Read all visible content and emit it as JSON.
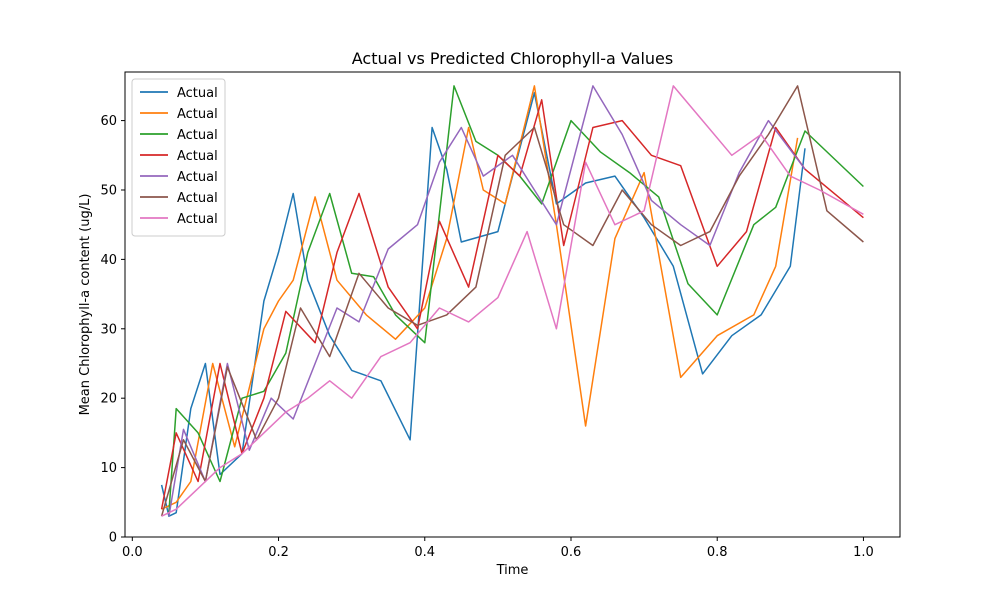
{
  "chart_data": {
    "type": "line",
    "title": "Actual vs Predicted Chlorophyll-a Values",
    "xlabel": "Time",
    "ylabel": "Mean Chlorophyll-a content (ug/L)",
    "xlim": [
      -0.01,
      1.05
    ],
    "ylim": [
      0,
      67
    ],
    "x_ticks": [
      0.0,
      0.2,
      0.4,
      0.6,
      0.8,
      1.0
    ],
    "x_tick_labels": [
      "0.0",
      "0.2",
      "0.4",
      "0.6",
      "0.8",
      "1.0"
    ],
    "y_ticks": [
      0,
      10,
      20,
      30,
      40,
      50,
      60
    ],
    "y_tick_labels": [
      "0",
      "10",
      "20",
      "30",
      "40",
      "50",
      "60"
    ],
    "grid": false,
    "legend_position": "top-left",
    "series": [
      {
        "name": "Actual",
        "color": "#1f77b4",
        "x": [
          0.04,
          0.05,
          0.06,
          0.08,
          0.1,
          0.12,
          0.15,
          0.18,
          0.2,
          0.22,
          0.24,
          0.27,
          0.3,
          0.34,
          0.38,
          0.41,
          0.43,
          0.45,
          0.5,
          0.53,
          0.55,
          0.58,
          0.62,
          0.66,
          0.7,
          0.74,
          0.78,
          0.82,
          0.86,
          0.9,
          0.92
        ],
        "y": [
          7.5,
          3.0,
          3.5,
          18.5,
          25.0,
          9.0,
          12.0,
          34.0,
          41.0,
          49.5,
          37.0,
          29.0,
          24.0,
          22.5,
          14.0,
          59.0,
          53.0,
          42.5,
          44.0,
          56.0,
          64.0,
          48.0,
          51.0,
          52.0,
          46.0,
          39.0,
          23.5,
          29.0,
          32.0,
          39.0,
          56.0
        ]
      },
      {
        "name": "Actual",
        "color": "#ff7f0e",
        "x": [
          0.04,
          0.06,
          0.08,
          0.11,
          0.14,
          0.18,
          0.2,
          0.22,
          0.25,
          0.28,
          0.32,
          0.36,
          0.4,
          0.43,
          0.46,
          0.48,
          0.51,
          0.55,
          0.58,
          0.62,
          0.66,
          0.7,
          0.75,
          0.8,
          0.85,
          0.88,
          0.91
        ],
        "y": [
          4.0,
          5.0,
          8.0,
          25.0,
          13.0,
          30.0,
          34.0,
          37.0,
          49.0,
          37.0,
          32.0,
          28.5,
          33.0,
          43.0,
          59.0,
          50.0,
          48.0,
          65.0,
          45.0,
          16.0,
          43.0,
          52.5,
          23.0,
          29.0,
          32.0,
          39.0,
          57.5
        ]
      },
      {
        "name": "Actual",
        "color": "#2ca02c",
        "x": [
          0.05,
          0.06,
          0.09,
          0.12,
          0.15,
          0.18,
          0.21,
          0.24,
          0.27,
          0.3,
          0.33,
          0.36,
          0.4,
          0.44,
          0.47,
          0.5,
          0.53,
          0.56,
          0.6,
          0.64,
          0.68,
          0.72,
          0.76,
          0.8,
          0.85,
          0.88,
          0.92,
          1.0
        ],
        "y": [
          3.5,
          18.5,
          15.0,
          8.0,
          20.0,
          21.0,
          26.5,
          41.0,
          49.5,
          38.0,
          37.5,
          32.0,
          28.0,
          65.0,
          57.0,
          55.0,
          52.0,
          48.0,
          60.0,
          55.5,
          52.5,
          49.0,
          36.5,
          32.0,
          45.0,
          47.5,
          58.5,
          50.5
        ]
      },
      {
        "name": "Actual",
        "color": "#d62728",
        "x": [
          0.04,
          0.06,
          0.09,
          0.12,
          0.15,
          0.18,
          0.21,
          0.25,
          0.28,
          0.31,
          0.35,
          0.39,
          0.42,
          0.46,
          0.5,
          0.53,
          0.56,
          0.59,
          0.63,
          0.67,
          0.71,
          0.75,
          0.8,
          0.84,
          0.88,
          0.92,
          1.0
        ],
        "y": [
          4.0,
          15.0,
          8.0,
          25.0,
          12.0,
          20.0,
          32.5,
          28.0,
          41.0,
          49.5,
          36.0,
          30.0,
          45.5,
          36.0,
          55.0,
          52.0,
          63.0,
          42.0,
          59.0,
          60.0,
          55.0,
          53.5,
          39.0,
          44.0,
          59.0,
          53.0,
          46.0
        ]
      },
      {
        "name": "Actual",
        "color": "#9467bd",
        "x": [
          0.05,
          0.07,
          0.1,
          0.13,
          0.16,
          0.19,
          0.22,
          0.25,
          0.28,
          0.31,
          0.35,
          0.39,
          0.42,
          0.45,
          0.48,
          0.52,
          0.55,
          0.58,
          0.63,
          0.67,
          0.71,
          0.75,
          0.79,
          0.83,
          0.87,
          0.92
        ],
        "y": [
          3.0,
          15.5,
          8.0,
          25.0,
          12.5,
          20.0,
          17.0,
          25.0,
          33.0,
          31.0,
          41.5,
          45.0,
          54.0,
          59.0,
          52.0,
          55.0,
          50.0,
          45.0,
          65.0,
          58.0,
          48.5,
          45.0,
          42.0,
          52.5,
          60.0,
          53.0
        ]
      },
      {
        "name": "Actual",
        "color": "#8c564b",
        "x": [
          0.04,
          0.07,
          0.1,
          0.13,
          0.17,
          0.2,
          0.23,
          0.27,
          0.31,
          0.35,
          0.39,
          0.43,
          0.47,
          0.51,
          0.55,
          0.59,
          0.63,
          0.67,
          0.71,
          0.75,
          0.79,
          0.83,
          0.87,
          0.91,
          0.95,
          1.0
        ],
        "y": [
          3.0,
          14.0,
          8.0,
          24.5,
          14.0,
          20.0,
          33.0,
          26.0,
          38.0,
          33.0,
          30.5,
          32.0,
          36.0,
          55.0,
          59.0,
          45.0,
          42.0,
          50.0,
          45.0,
          42.0,
          44.0,
          52.0,
          58.0,
          65.0,
          47.0,
          42.5
        ]
      },
      {
        "name": "Actual",
        "color": "#e377c2",
        "x": [
          0.04,
          0.06,
          0.09,
          0.12,
          0.15,
          0.18,
          0.21,
          0.24,
          0.27,
          0.3,
          0.34,
          0.38,
          0.42,
          0.46,
          0.5,
          0.54,
          0.58,
          0.62,
          0.66,
          0.7,
          0.74,
          0.78,
          0.82,
          0.86,
          0.9,
          0.94,
          1.0
        ],
        "y": [
          3.0,
          4.0,
          7.0,
          10.0,
          12.0,
          15.0,
          18.0,
          20.0,
          22.5,
          20.0,
          26.0,
          28.0,
          33.0,
          31.0,
          34.5,
          44.0,
          30.0,
          54.0,
          45.0,
          47.0,
          65.0,
          60.0,
          55.0,
          58.0,
          52.0,
          50.0,
          46.5
        ]
      }
    ]
  }
}
